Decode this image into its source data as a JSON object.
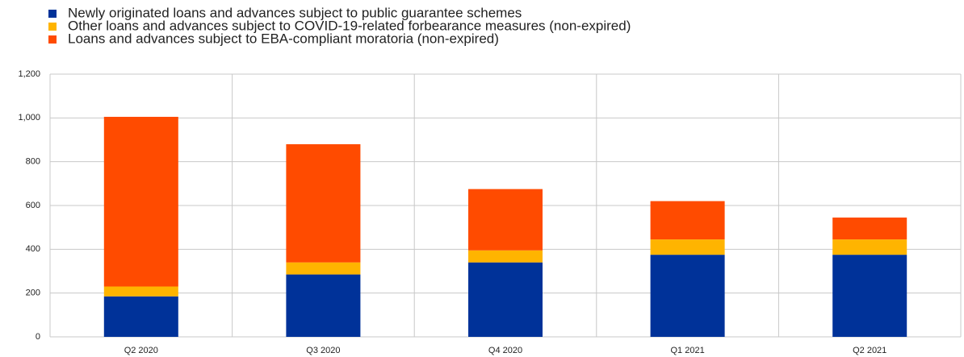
{
  "chart_data": {
    "type": "stacked-bar",
    "categories": [
      "Q2 2020",
      "Q3 2020",
      "Q4 2020",
      "Q1 2021",
      "Q2 2021"
    ],
    "series": [
      {
        "name": "Newly originated loans and advances subject to public guarantee schemes",
        "color": "#003299",
        "values": [
          185,
          285,
          340,
          375,
          375
        ]
      },
      {
        "name": "Other loans and advances subject to COVID-19-related forbearance measures (non-expired)",
        "color": "#ffb400",
        "values": [
          45,
          55,
          55,
          70,
          70
        ]
      },
      {
        "name": "Loans and advances subject to EBA-compliant moratoria (non-expired)",
        "color": "#ff4b00",
        "values": [
          775,
          540,
          280,
          175,
          100
        ]
      }
    ],
    "ylim": [
      0,
      1200
    ],
    "yticks": [
      0,
      200,
      400,
      600,
      800,
      {
        "value": 1000,
        "label": "1,000"
      },
      {
        "value": 1200,
        "label": "1,200"
      }
    ],
    "grid": true
  }
}
